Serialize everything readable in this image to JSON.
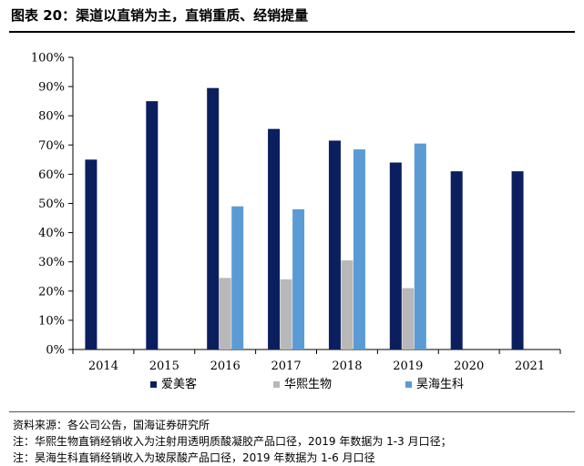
{
  "figure": {
    "title": "图表 20：渠道以直销为主，直销重质、经销提量"
  },
  "chart_data": {
    "type": "bar",
    "categories": [
      "2014",
      "2015",
      "2016",
      "2017",
      "2018",
      "2019",
      "2020",
      "2021"
    ],
    "series": [
      {
        "name": "爱美客",
        "color": "#0b1f5e",
        "values": [
          65,
          85,
          89.5,
          75.5,
          71.5,
          64,
          61,
          61
        ]
      },
      {
        "name": "华熙生物",
        "color": "#b8b8b8",
        "values": [
          null,
          null,
          24.5,
          24,
          30.5,
          21,
          null,
          null
        ]
      },
      {
        "name": "昊海生科",
        "color": "#5b9bd5",
        "values": [
          null,
          null,
          49,
          48,
          68.5,
          70.5,
          null,
          null
        ]
      }
    ],
    "ylim": [
      0,
      100
    ],
    "yticks": [
      "0%",
      "10%",
      "20%",
      "30%",
      "40%",
      "50%",
      "60%",
      "70%",
      "80%",
      "90%",
      "100%"
    ],
    "legend_position": "bottom",
    "grid": false
  },
  "notes": {
    "source": "资料来源：各公司公告，国海证券研究所",
    "note1": "注：华熙生物直销经销收入为注射用透明质酸凝胶产品口径，2019 年数据为 1-3 月口径；",
    "note2": "注：昊海生科直销经销收入为玻尿酸产品口径，2019 年数据为 1-6 月口径"
  }
}
